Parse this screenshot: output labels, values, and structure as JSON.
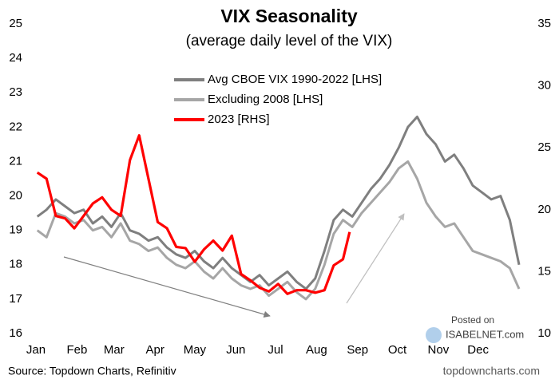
{
  "chart_data": {
    "type": "line",
    "title": "VIX Seasonality",
    "subtitle": "(average daily level of the VIX)",
    "source": "Source: Topdown Charts, Refinitiv",
    "credit": "topdowncharts.com",
    "watermark": [
      "Posted on",
      "ISABELNET.com"
    ],
    "x": [
      1,
      8,
      15,
      22,
      29,
      36,
      43,
      50,
      57,
      64,
      71,
      78,
      85,
      92,
      99,
      106,
      113,
      120,
      127,
      134,
      141,
      148,
      155,
      162,
      169,
      176,
      183,
      190,
      197,
      204,
      211,
      218,
      225,
      232,
      239,
      246,
      253,
      260,
      267,
      274,
      281,
      288,
      295,
      302,
      309,
      316,
      323,
      330,
      337,
      344,
      351,
      358,
      365
    ],
    "xlim": [
      0,
      365
    ],
    "xticks": [
      {
        "value": 0,
        "label": "Jan"
      },
      {
        "value": 31,
        "label": "Feb"
      },
      {
        "value": 59,
        "label": "Mar"
      },
      {
        "value": 90,
        "label": "Apr"
      },
      {
        "value": 120,
        "label": "May"
      },
      {
        "value": 151,
        "label": "Jun"
      },
      {
        "value": 181,
        "label": "Jul"
      },
      {
        "value": 212,
        "label": "Aug"
      },
      {
        "value": 243,
        "label": "Sep"
      },
      {
        "value": 273,
        "label": "Oct"
      },
      {
        "value": 304,
        "label": "Nov"
      },
      {
        "value": 334,
        "label": "Dec"
      }
    ],
    "ylim": [
      16,
      25
    ],
    "yticks": [
      16,
      17,
      18,
      19,
      20,
      21,
      22,
      23,
      24,
      25
    ],
    "y2lim": [
      10,
      35
    ],
    "y2ticks": [
      10,
      15,
      20,
      25,
      30,
      35
    ],
    "series": [
      {
        "name": "Avg CBOE VIX 1990-2022 [LHS]",
        "color": "#7f7f7f",
        "values": [
          19.4,
          19.6,
          19.9,
          19.7,
          19.5,
          19.6,
          19.2,
          19.4,
          19.1,
          19.5,
          19.0,
          18.9,
          18.7,
          18.8,
          18.5,
          18.3,
          18.2,
          18.4,
          18.1,
          17.9,
          18.2,
          17.9,
          17.7,
          17.5,
          17.7,
          17.4,
          17.6,
          17.8,
          17.5,
          17.3,
          17.6,
          18.4,
          19.3,
          19.6,
          19.4,
          19.8,
          20.2,
          20.5,
          20.9,
          21.4,
          22.0,
          22.3,
          21.8,
          21.5,
          21.0,
          21.2,
          20.8,
          20.3,
          20.1,
          19.9,
          20.0,
          19.3,
          18.0
        ]
      },
      {
        "name": "Excluding 2008 [LHS]",
        "color": "#a6a6a6",
        "values": [
          19.0,
          18.8,
          19.5,
          19.4,
          19.2,
          19.3,
          19.0,
          19.1,
          18.8,
          19.2,
          18.7,
          18.6,
          18.4,
          18.5,
          18.2,
          18.0,
          17.9,
          18.1,
          17.8,
          17.6,
          17.9,
          17.6,
          17.4,
          17.3,
          17.4,
          17.1,
          17.3,
          17.5,
          17.2,
          17.0,
          17.3,
          18.0,
          18.9,
          19.3,
          19.1,
          19.5,
          19.8,
          20.1,
          20.4,
          20.8,
          21.0,
          20.5,
          19.8,
          19.4,
          19.1,
          19.2,
          18.8,
          18.4,
          18.3,
          18.2,
          18.1,
          17.9,
          17.3
        ]
      },
      {
        "name": "2023 [RHS]",
        "color": "#ff0000",
        "axis": "y2",
        "x": [
          1,
          8,
          15,
          22,
          29,
          36,
          43,
          50,
          57,
          64,
          71,
          78,
          85,
          92,
          99,
          106,
          113,
          120,
          127,
          134,
          141,
          148,
          155,
          162,
          169,
          176,
          183,
          190,
          197,
          204,
          211,
          218,
          225,
          232,
          237
        ],
        "values": [
          23.0,
          22.5,
          19.5,
          19.3,
          18.5,
          19.5,
          20.5,
          21.0,
          20.0,
          19.5,
          24.0,
          26.0,
          22.5,
          19.0,
          18.5,
          17.0,
          16.9,
          15.8,
          16.8,
          17.5,
          16.7,
          17.9,
          14.8,
          14.3,
          13.7,
          13.4,
          14.0,
          13.2,
          13.5,
          13.5,
          13.3,
          13.5,
          15.5,
          16.0,
          18.2
        ]
      }
    ]
  }
}
